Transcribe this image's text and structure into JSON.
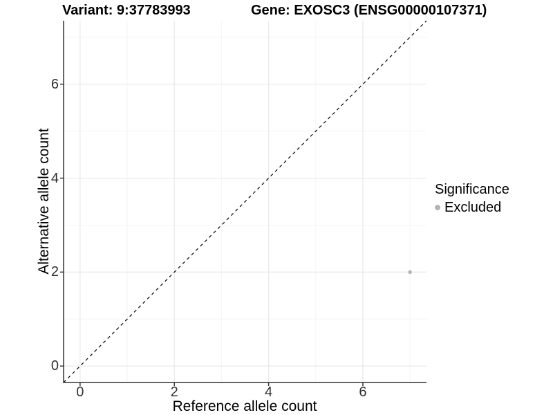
{
  "chart_data": {
    "type": "scatter",
    "title_left": "Variant: 9:37783993",
    "title_right": "Gene: EXOSC3 (ENSG00000107371)",
    "xlabel": "Reference allele count",
    "ylabel": "Alternative allele count",
    "xlim": [
      -0.35,
      7.35
    ],
    "ylim": [
      -0.35,
      7.35
    ],
    "xticks": [
      0,
      2,
      4,
      6
    ],
    "yticks": [
      0,
      2,
      4,
      6
    ],
    "minor_gridlines_x": [
      1,
      3,
      5,
      7
    ],
    "minor_gridlines_y": [
      1,
      3,
      5,
      7
    ],
    "grid": "major-and-minor",
    "series": [
      {
        "name": "Excluded",
        "color": "#b3b3b3",
        "marker": "circle",
        "points": [
          {
            "x": 7,
            "y": 2
          }
        ]
      }
    ],
    "reference_line": {
      "kind": "identity",
      "linestyle": "dashed",
      "color": "#000000",
      "x0": -0.35,
      "y0": -0.35,
      "x1": 7.35,
      "y1": 7.35
    },
    "legend": {
      "title": "Significance",
      "position": "right",
      "items": [
        {
          "label": "Excluded",
          "color": "#b3b3b3"
        }
      ]
    }
  },
  "colors": {
    "background": "#ffffff",
    "grid_major": "#e8e8e8",
    "grid_minor": "#f4f4f4",
    "axis_line": "#333333",
    "tick_mark": "#333333",
    "tick_text": "#303030",
    "point": "#b3b3b3",
    "reference_line": "#000000"
  }
}
